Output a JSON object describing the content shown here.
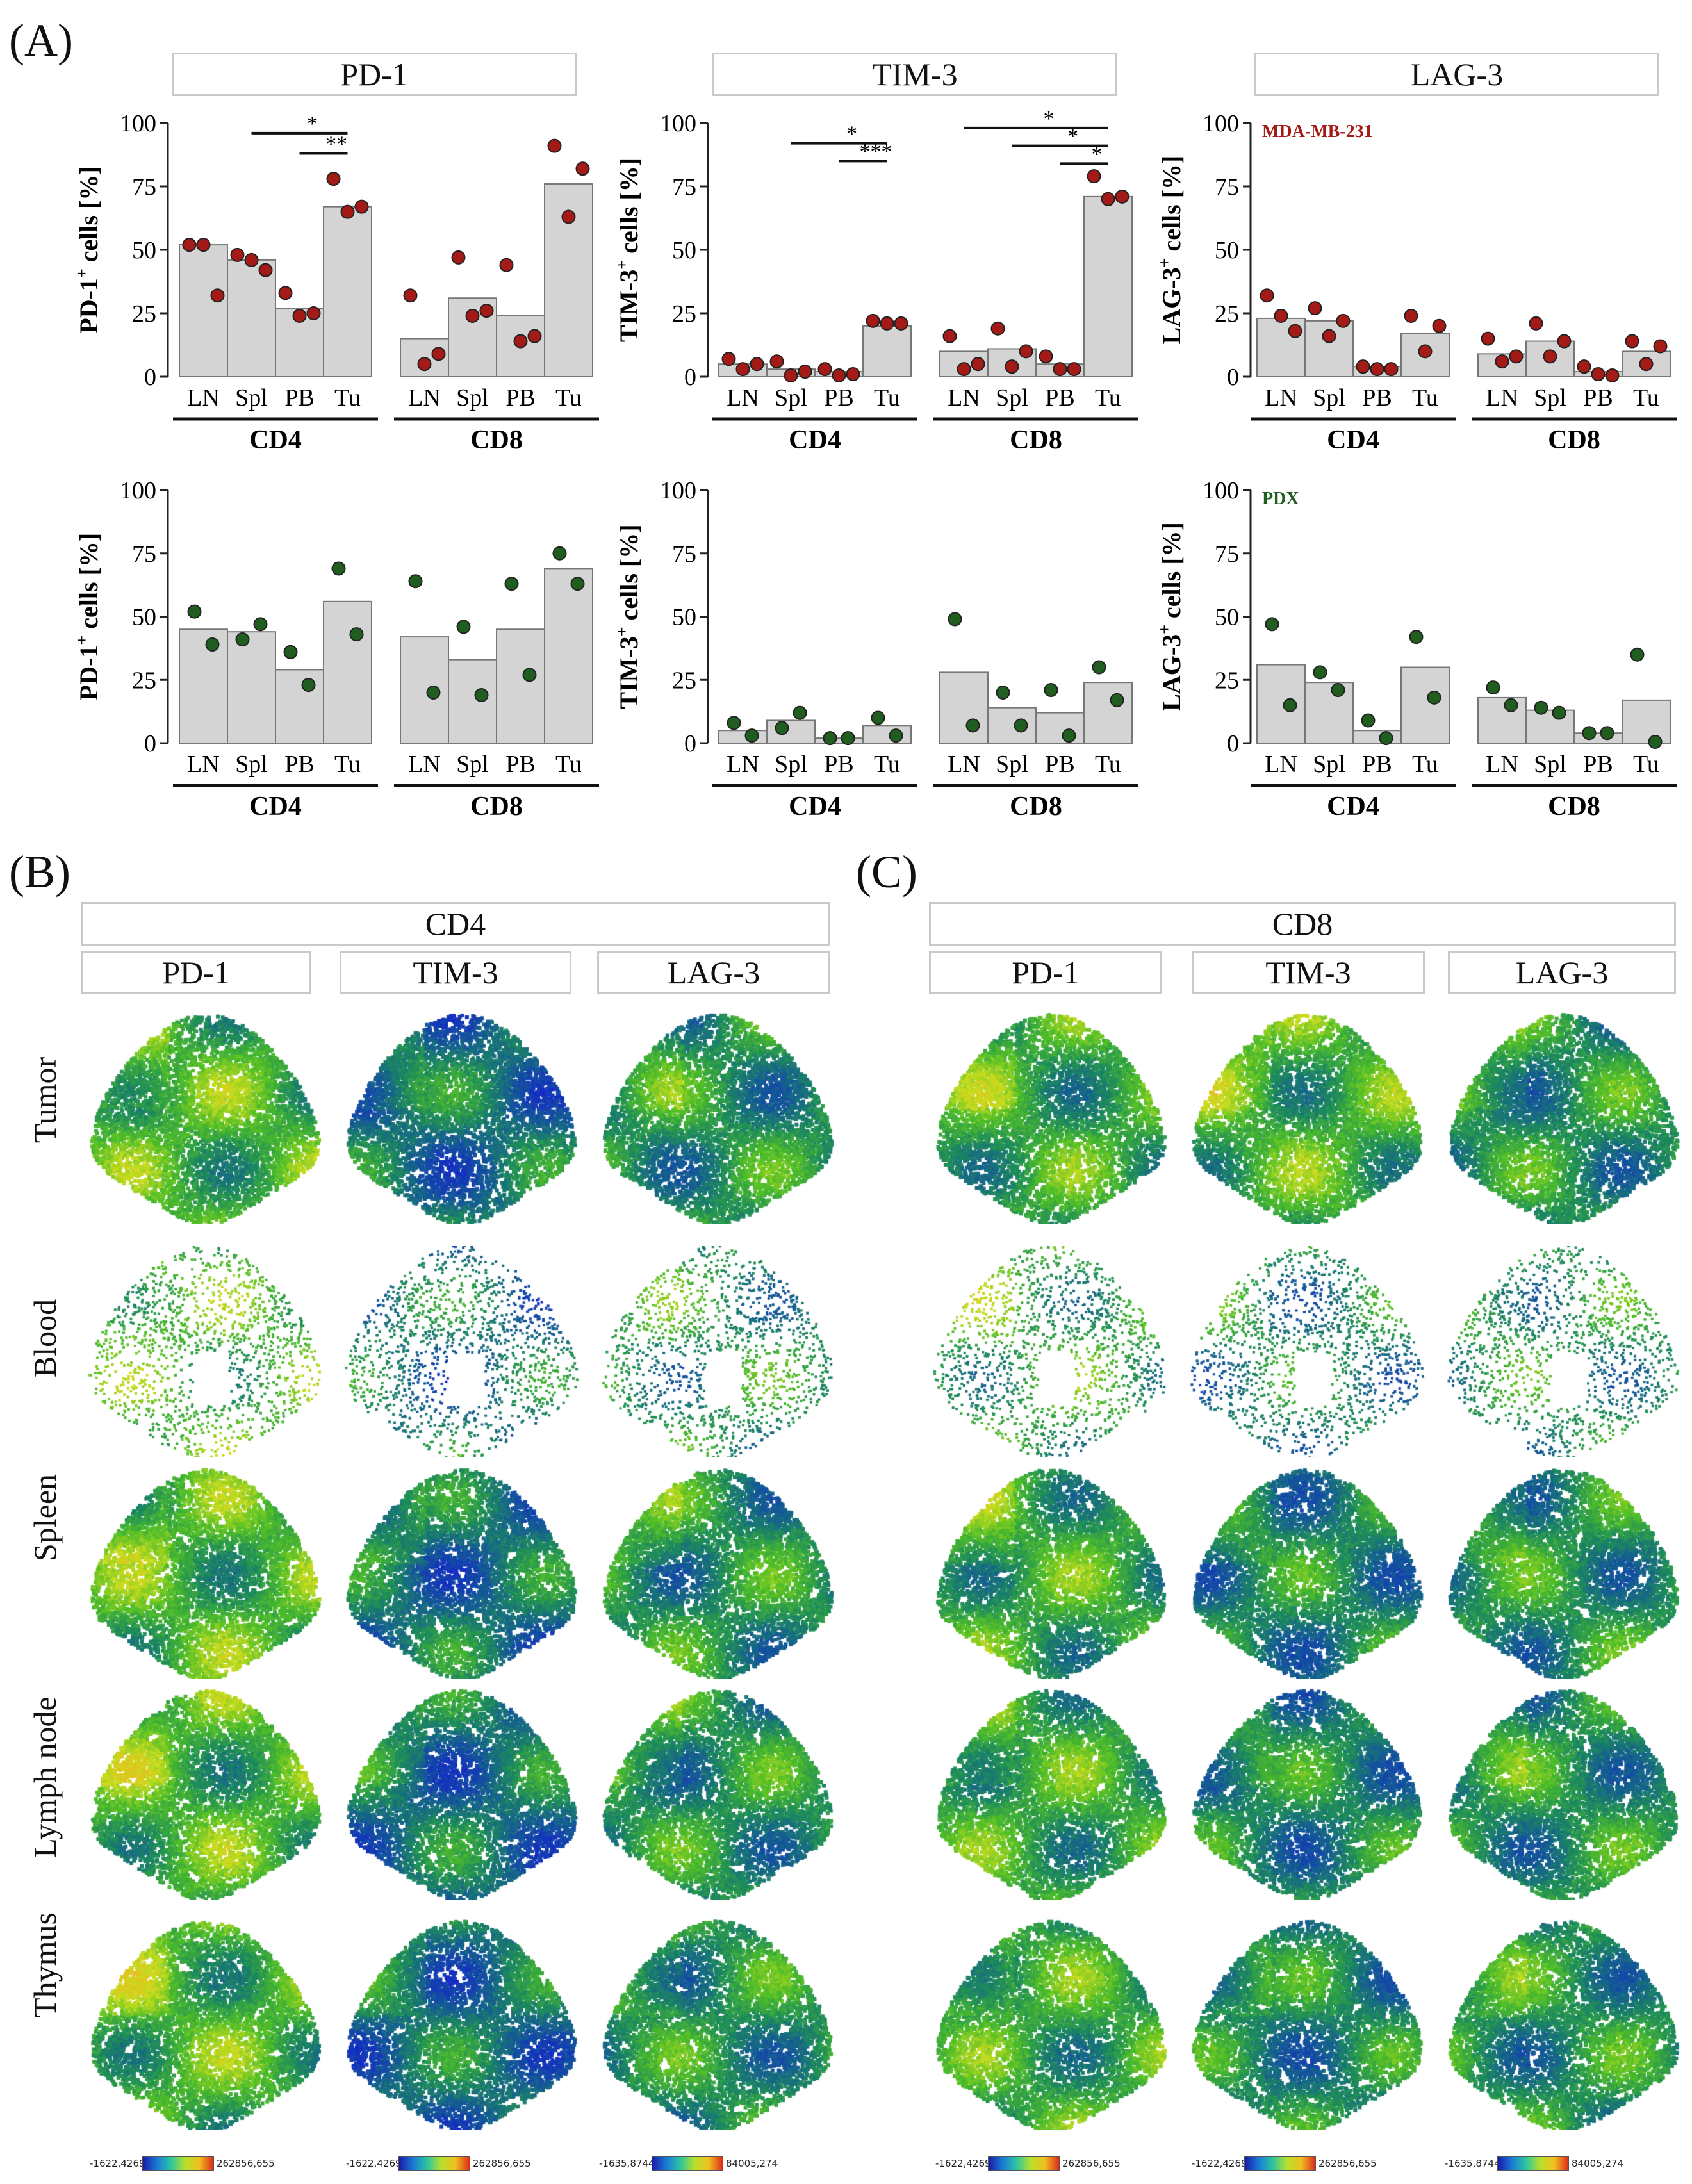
{
  "panel_labels": {
    "a": "(A)",
    "b": "(B)",
    "c": "(C)"
  },
  "marker_headers": {
    "pd1": "PD-1",
    "tim3": "TIM-3",
    "lag3": "LAG-3"
  },
  "colors": {
    "mda": "#a31a16",
    "pdx": "#1f5e1f",
    "bar": "#d4d4d4",
    "bar_edge": "#777777"
  },
  "chart_data": [
    {
      "id": "pd1_mda",
      "type": "bar",
      "title": "PD-1",
      "ylabel": "PD-1⁺ cells [%]",
      "ylabel_main": "PD-1",
      "ylabel_sup": "+",
      "ylabel_tail": " cells [%]",
      "ylim": [
        0,
        100
      ],
      "yticks": [
        "0",
        "25",
        "50",
        "75",
        "100"
      ],
      "categories": [
        "LN",
        "Spl",
        "PB",
        "Tu",
        "LN",
        "Spl",
        "PB",
        "Tu"
      ],
      "groups": [
        "CD4",
        "CD8"
      ],
      "values": [
        52,
        46,
        27,
        67,
        15,
        31,
        24,
        76
      ],
      "points": [
        [
          52,
          52,
          32
        ],
        [
          48,
          46,
          42
        ],
        [
          33,
          24,
          25
        ],
        [
          78,
          65,
          67
        ],
        [
          32,
          5,
          9
        ],
        [
          47,
          24,
          26
        ],
        [
          44,
          14,
          16
        ],
        [
          91,
          63,
          82
        ]
      ],
      "dot": "mda",
      "sig": [
        {
          "label": "*",
          "from": 1,
          "to": 3,
          "y": 96
        },
        {
          "label": "**",
          "from": 2,
          "to": 3,
          "y": 88
        }
      ]
    },
    {
      "id": "tim3_mda",
      "type": "bar",
      "title": "TIM-3",
      "ylabel": "TIM-3⁺ cells [%]",
      "ylabel_main": "TIM-3",
      "ylabel_sup": "+",
      "ylabel_tail": " cells [%]",
      "ylim": [
        0,
        100
      ],
      "yticks": [
        "0",
        "25",
        "50",
        "75",
        "100"
      ],
      "categories": [
        "LN",
        "Spl",
        "PB",
        "Tu",
        "LN",
        "Spl",
        "PB",
        "Tu"
      ],
      "groups": [
        "CD4",
        "CD8"
      ],
      "values": [
        5,
        3,
        2,
        20,
        10,
        11,
        5,
        71
      ],
      "points": [
        [
          7,
          3,
          5
        ],
        [
          6,
          0.5,
          2
        ],
        [
          3,
          0.5,
          1
        ],
        [
          22,
          21,
          21
        ],
        [
          16,
          3,
          5
        ],
        [
          19,
          4,
          10
        ],
        [
          8,
          3,
          3
        ],
        [
          79,
          70,
          71
        ]
      ],
      "dot": "mda",
      "sig": [
        {
          "label": "*",
          "from": 1,
          "to": 3,
          "y": 92
        },
        {
          "label": "***",
          "from": 2,
          "to": 3,
          "y": 85
        },
        {
          "label": "*",
          "from": 4,
          "to": 7,
          "y": 98
        },
        {
          "label": "*",
          "from": 5,
          "to": 7,
          "y": 91
        },
        {
          "label": "*",
          "from": 6,
          "to": 7,
          "y": 84
        }
      ]
    },
    {
      "id": "lag3_mda",
      "type": "bar",
      "title": "LAG-3",
      "ylabel": "LAG-3⁺ cells [%]",
      "ylabel_main": "LAG-3",
      "ylabel_sup": "+",
      "ylabel_tail": " cells [%]",
      "ylim": [
        0,
        100
      ],
      "yticks": [
        "0",
        "25",
        "50",
        "75",
        "100"
      ],
      "categories": [
        "LN",
        "Spl",
        "PB",
        "Tu",
        "LN",
        "Spl",
        "PB",
        "Tu"
      ],
      "groups": [
        "CD4",
        "CD8"
      ],
      "values": [
        23,
        22,
        4,
        17,
        9,
        14,
        2,
        10
      ],
      "points": [
        [
          32,
          24,
          18
        ],
        [
          27,
          16,
          22
        ],
        [
          4,
          3,
          3
        ],
        [
          24,
          10,
          20
        ],
        [
          15,
          6,
          8
        ],
        [
          21,
          8,
          14
        ],
        [
          4,
          1,
          0.5
        ],
        [
          14,
          5,
          12
        ]
      ],
      "dot": "mda",
      "annotation": "MDA-MB-231",
      "sig": []
    },
    {
      "id": "pd1_pdx",
      "type": "bar",
      "ylabel": "PD-1⁺ cells [%]",
      "ylabel_main": "PD-1",
      "ylabel_sup": "+",
      "ylabel_tail": " cells [%]",
      "ylim": [
        0,
        100
      ],
      "yticks": [
        "0",
        "25",
        "50",
        "75",
        "100"
      ],
      "categories": [
        "LN",
        "Spl",
        "PB",
        "Tu",
        "LN",
        "Spl",
        "PB",
        "Tu"
      ],
      "groups": [
        "CD4",
        "CD8"
      ],
      "values": [
        45,
        44,
        29,
        56,
        42,
        33,
        45,
        69
      ],
      "points": [
        [
          52,
          39
        ],
        [
          41,
          47
        ],
        [
          36,
          23
        ],
        [
          69,
          43
        ],
        [
          64,
          20
        ],
        [
          46,
          19
        ],
        [
          63,
          27
        ],
        [
          75,
          63
        ]
      ],
      "dot": "pdx",
      "sig": []
    },
    {
      "id": "tim3_pdx",
      "type": "bar",
      "ylabel": "TIM-3⁺ cells [%]",
      "ylabel_main": "TIM-3",
      "ylabel_sup": "+",
      "ylabel_tail": " cells [%]",
      "ylim": [
        0,
        100
      ],
      "yticks": [
        "0",
        "25",
        "50",
        "75",
        "100"
      ],
      "categories": [
        "LN",
        "Spl",
        "PB",
        "Tu",
        "LN",
        "Spl",
        "PB",
        "Tu"
      ],
      "groups": [
        "CD4",
        "CD8"
      ],
      "values": [
        5,
        9,
        2,
        7,
        28,
        14,
        12,
        24
      ],
      "points": [
        [
          8,
          3
        ],
        [
          6,
          12
        ],
        [
          2,
          2
        ],
        [
          10,
          3
        ],
        [
          49,
          7
        ],
        [
          20,
          7
        ],
        [
          21,
          3
        ],
        [
          30,
          17
        ]
      ],
      "dot": "pdx",
      "sig": []
    },
    {
      "id": "lag3_pdx",
      "type": "bar",
      "ylabel": "LAG-3⁺ cells [%]",
      "ylabel_main": "LAG-3",
      "ylabel_sup": "+",
      "ylabel_tail": " cells [%]",
      "ylim": [
        0,
        100
      ],
      "yticks": [
        "0",
        "25",
        "50",
        "75",
        "100"
      ],
      "categories": [
        "LN",
        "Spl",
        "PB",
        "Tu",
        "LN",
        "Spl",
        "PB",
        "Tu"
      ],
      "groups": [
        "CD4",
        "CD8"
      ],
      "values": [
        31,
        24,
        5,
        30,
        18,
        13,
        4,
        17
      ],
      "points": [
        [
          47,
          15
        ],
        [
          28,
          21
        ],
        [
          9,
          2
        ],
        [
          42,
          18
        ],
        [
          22,
          15
        ],
        [
          14,
          12
        ],
        [
          4,
          4
        ],
        [
          35,
          0.5
        ]
      ],
      "dot": "pdx",
      "annotation": "PDX",
      "sig": []
    }
  ],
  "tsne": {
    "b_header": "CD4",
    "c_header": "CD8",
    "col_headers": [
      "PD-1",
      "TIM-3",
      "LAG-3"
    ],
    "rows": [
      "Tumor",
      "Blood",
      "Spleen",
      "Lymph node",
      "Thymus"
    ],
    "colorbars": [
      {
        "min": "-1622,4269",
        "max": "262856,655"
      },
      {
        "min": "-1622,4269",
        "max": "262856,655"
      },
      {
        "min": "-1635,8744",
        "max": "84005,274"
      },
      {
        "min": "-1622,4269",
        "max": "262856,655"
      },
      {
        "min": "-1622,4269",
        "max": "262856,655"
      },
      {
        "min": "-1635,8744",
        "max": "84005,274"
      }
    ]
  }
}
